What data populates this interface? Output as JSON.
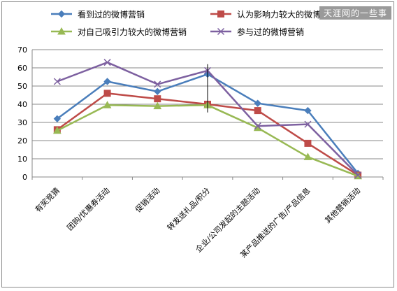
{
  "watermark": "天涯网的一些事",
  "chart_data": {
    "type": "line",
    "categories": [
      "有奖竞猜",
      "团购/优惠券活动",
      "促销活动",
      "转发送礼品/积分",
      "企业/公司发起的主题活动",
      "某产品推送的广告/产品信息",
      "其他营销活动"
    ],
    "ylim": [
      0,
      70
    ],
    "yticks": [
      0,
      10,
      20,
      30,
      40,
      50,
      60,
      70
    ],
    "grid": true,
    "legend_position": "top",
    "series": [
      {
        "name": "看到过的微博营销",
        "color": "#4a7ebb",
        "marker": "diamond",
        "values": [
          32,
          52.5,
          47,
          56.5,
          40.5,
          36.5,
          2
        ]
      },
      {
        "name": "认为影响力较大的微博营销",
        "color": "#be4b48",
        "marker": "square",
        "values": [
          26,
          46,
          43,
          40,
          36.5,
          18.5,
          1
        ]
      },
      {
        "name": "对自己吸引力较大的微博营销",
        "color": "#98b954",
        "marker": "triangle",
        "values": [
          25.5,
          39.5,
          39,
          39.5,
          27,
          11,
          0.5
        ]
      },
      {
        "name": "参与过的微博营销",
        "color": "#7d60a0",
        "marker": "x",
        "values": [
          52.5,
          63,
          51,
          58.5,
          28,
          29,
          1
        ]
      }
    ]
  }
}
